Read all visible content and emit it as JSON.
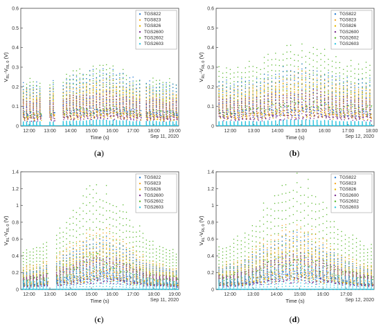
{
  "figure": {
    "series": [
      {
        "name": "TGS822",
        "color": "#1f77d0"
      },
      {
        "name": "TGS823",
        "color": "#f5a623"
      },
      {
        "name": "TGS826",
        "color": "#e8b800"
      },
      {
        "name": "TGS2600",
        "color": "#7b2d8e"
      },
      {
        "name": "TGS2602",
        "color": "#5ab82e"
      },
      {
        "name": "TGS2603",
        "color": "#2bc4e0"
      }
    ],
    "ylabel_main": "V",
    "ylabel_sub1": "RL",
    "ylabel_mid": "-V",
    "ylabel_sub2": "RL 0",
    "ylabel_unit": " (V)",
    "xlabel": "Time (s)"
  },
  "chart_data": [
    {
      "type": "scatter",
      "caption": "a",
      "xlabel": "Time (s)",
      "date": "Sep 11, 2020",
      "x_ticks": [
        "12:00",
        "13:00",
        "14:00",
        "15:00",
        "16:00",
        "17:00",
        "18:00",
        "19:00"
      ],
      "y_ticks": [
        "0",
        "0.1",
        "0.2",
        "0.3",
        "0.4",
        "0.5",
        "0.6"
      ],
      "ylim": [
        0,
        0.6
      ],
      "xlim_hours": [
        11.6,
        19.2
      ],
      "legend": "top-right",
      "gaps_hours": [
        [
          12.55,
          12.95
        ],
        [
          13.3,
          13.55
        ],
        [
          17.35,
          17.6
        ]
      ],
      "cycle_hours": 0.16,
      "peaks": {
        "TGS2602": 0.3,
        "TGS822": 0.28,
        "TGS823": 0.24,
        "TGS826": 0.2,
        "TGS2600": 0.17,
        "TGS2603": 0.03
      }
    },
    {
      "type": "scatter",
      "caption": "b",
      "xlabel": "Time (s)",
      "date": "Sep 12, 2020",
      "x_ticks": [
        "12:00",
        "13:00",
        "14:00",
        "15:00",
        "16:00",
        "17:00",
        "18:00"
      ],
      "y_ticks": [
        "0",
        "0.1",
        "0.2",
        "0.3",
        "0.4",
        "0.5",
        "0.6"
      ],
      "ylim": [
        0,
        0.6
      ],
      "xlim_hours": [
        11.4,
        18.1
      ],
      "legend": "top-right",
      "gaps_hours": [],
      "cycle_hours": 0.16,
      "peaks": {
        "TGS2602": 0.4,
        "TGS822": 0.3,
        "TGS823": 0.27,
        "TGS826": 0.23,
        "TGS2600": 0.18,
        "TGS2603": 0.03
      }
    },
    {
      "type": "scatter",
      "caption": "c",
      "xlabel": "Time (s)",
      "date": "Sep 11, 2020",
      "x_ticks": [
        "12:00",
        "13:00",
        "14:00",
        "15:00",
        "16:00",
        "17:00",
        "18:00",
        "19:00"
      ],
      "y_ticks": [
        "0",
        "0.2",
        "0.4",
        "0.6",
        "0.8",
        "1",
        "1.2",
        "1.4"
      ],
      "ylim": [
        0,
        1.4
      ],
      "xlim_hours": [
        11.6,
        19.2
      ],
      "legend": "top-right",
      "gaps_hours": [
        [
          12.9,
          13.25
        ]
      ],
      "cycle_hours": 0.16,
      "peaks": {
        "TGS2602": 1.2,
        "TGS822": 0.6,
        "TGS823": 0.72,
        "TGS826": 0.5,
        "TGS2600": 0.4,
        "TGS2603": 0.28
      }
    },
    {
      "type": "scatter",
      "caption": "d",
      "xlabel": "Time (s)",
      "date": "Sep 12, 2020",
      "x_ticks": [
        "12:00",
        "13:00",
        "14:00",
        "15:00",
        "16:00",
        "17:00"
      ],
      "y_ticks": [
        "0",
        "0.2",
        "0.4",
        "0.6",
        "0.8",
        "1",
        "1.2",
        "1.4"
      ],
      "ylim": [
        0,
        1.4
      ],
      "xlim_hours": [
        11.4,
        18.2
      ],
      "legend": "top-right",
      "gaps_hours": [],
      "cycle_hours": 0.16,
      "peaks": {
        "TGS2602": 1.3,
        "TGS822": 0.65,
        "TGS823": 0.75,
        "TGS826": 0.52,
        "TGS2600": 0.42,
        "TGS2603": 0.3
      }
    }
  ]
}
